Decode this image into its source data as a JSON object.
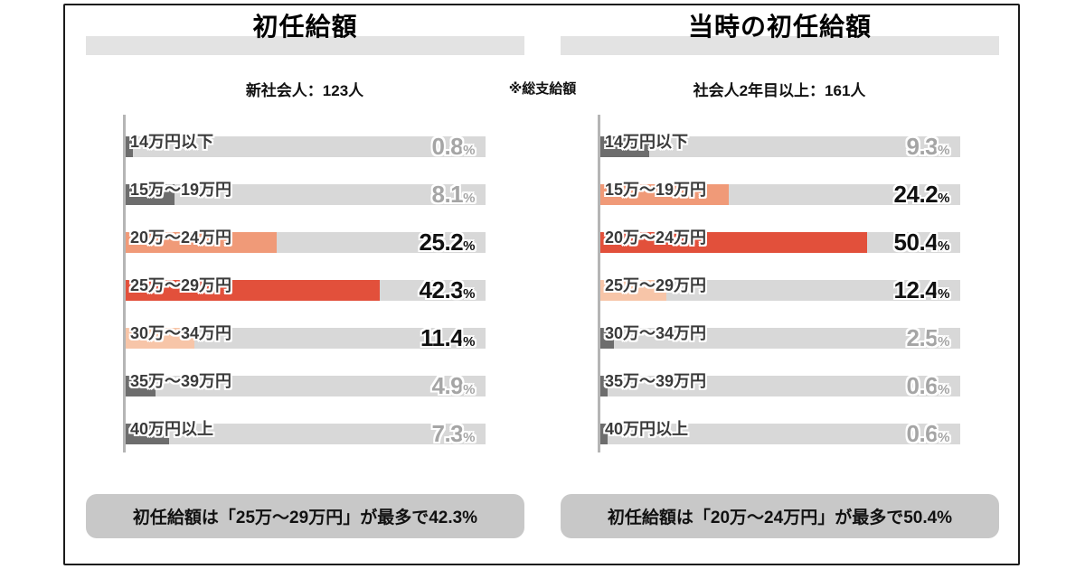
{
  "unit": "%",
  "center_note": "※総支給額",
  "colors": {
    "bar_max": "#e2503b",
    "bar_second": "#f09a78",
    "bar_third": "#f7c5a8",
    "bar_low": "#6d6d6d",
    "pct_dark": "#111111",
    "pct_gray": "#a5a5a5",
    "track": "#d8d8d8",
    "title_band": "#e3e3e3",
    "summary_bg": "#c8c8c8"
  },
  "chart_data": [
    {
      "type": "bar",
      "orientation": "horizontal",
      "title": "初任給額",
      "subtitle": "新社会人：123人",
      "categories": [
        "14万円以下",
        "15万～19万円",
        "20万～24万円",
        "25万～29万円",
        "30万～34万円",
        "35万～39万円",
        "40万円以上"
      ],
      "values": [
        0.8,
        8.1,
        25.2,
        42.3,
        11.4,
        4.9,
        7.3
      ],
      "value_labels": [
        "0.8",
        "8.1",
        "25.2",
        "42.3",
        "11.4",
        "4.9",
        "7.3"
      ],
      "tiers": [
        "low",
        "low",
        "second",
        "max",
        "third",
        "low",
        "low"
      ],
      "xlim": [
        0,
        60
      ],
      "grid": false,
      "legend": "none",
      "summary": "初任給額は「25万～29万円」が最多で42.3%"
    },
    {
      "type": "bar",
      "orientation": "horizontal",
      "title": "当時の初任給額",
      "subtitle": "社会人2年目以上：161人",
      "categories": [
        "14万円以下",
        "15万～19万円",
        "20万～24万円",
        "25万～29万円",
        "30万～34万円",
        "35万～39万円",
        "40万円以上"
      ],
      "values": [
        9.3,
        24.2,
        50.4,
        12.4,
        2.5,
        0.6,
        0.6
      ],
      "value_labels": [
        "9.3",
        "24.2",
        "50.4",
        "12.4",
        "2.5",
        "0.6",
        "0.6"
      ],
      "tiers": [
        "low",
        "second",
        "max",
        "third",
        "low",
        "low",
        "low"
      ],
      "xlim": [
        0,
        68
      ],
      "grid": false,
      "legend": "none",
      "summary": "初任給額は「20万～24万円」が最多で50.4%"
    }
  ]
}
